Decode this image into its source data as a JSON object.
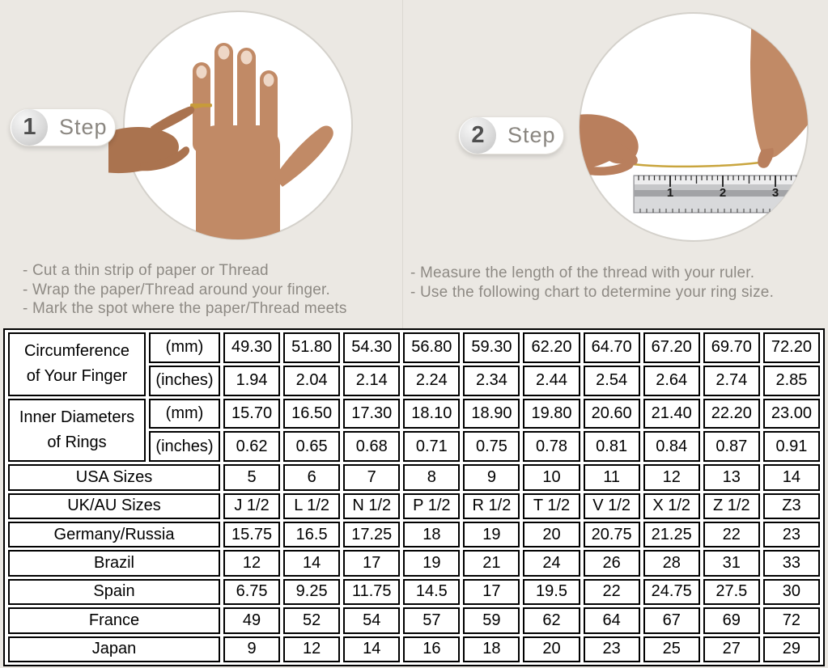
{
  "colors": {
    "page_bg": "#ebe8e3",
    "table_shaded": "#d9d9d9",
    "thread_gold": "#c79b3a",
    "skin_main": "#c18a66",
    "skin_secondary": "#aa734f"
  },
  "steps": [
    {
      "number": "1",
      "label": "Step",
      "photo": "hand-with-thread-wrapped-around-ring-finger",
      "instructions": [
        "-  Cut a thin strip of paper or Thread",
        "-  Wrap the paper/Thread around your finger.",
        "-  Mark the spot where the paper/Thread meets"
      ]
    },
    {
      "number": "2",
      "label": "Step",
      "photo": "hands-measuring-thread-length-with-ruler",
      "ruler_numbers": [
        "1",
        "2",
        "3"
      ],
      "instructions": [
        "-  Measure the length of the thread with your ruler.",
        "-  Use the following chart to determine your ring size."
      ]
    }
  ],
  "table": {
    "row_groups": [
      {
        "label_lines": [
          "Circumference",
          "of Your Finger"
        ],
        "sub_rows": [
          {
            "unit": "(mm)",
            "shaded": true,
            "values": [
              "49.30",
              "51.80",
              "54.30",
              "56.80",
              "59.30",
              "62.20",
              "64.70",
              "67.20",
              "69.70",
              "72.20"
            ]
          },
          {
            "unit": "(inches)",
            "shaded": false,
            "values": [
              "1.94",
              "2.04",
              "2.14",
              "2.24",
              "2.34",
              "2.44",
              "2.54",
              "2.64",
              "2.74",
              "2.85"
            ]
          }
        ]
      },
      {
        "label_lines": [
          "Inner Diameters",
          "of Rings"
        ],
        "sub_rows": [
          {
            "unit": "(mm)",
            "shaded": false,
            "values": [
              "15.70",
              "16.50",
              "17.30",
              "18.10",
              "18.90",
              "19.80",
              "20.60",
              "21.40",
              "22.20",
              "23.00"
            ]
          },
          {
            "unit": "(inches)",
            "shaded": false,
            "values": [
              "0.62",
              "0.65",
              "0.68",
              "0.71",
              "0.75",
              "0.78",
              "0.81",
              "0.84",
              "0.87",
              "0.91"
            ]
          }
        ]
      }
    ],
    "simple_rows": [
      {
        "label": "USA Sizes",
        "shaded": true,
        "values": [
          "5",
          "6",
          "7",
          "8",
          "9",
          "10",
          "11",
          "12",
          "13",
          "14"
        ]
      },
      {
        "label": "UK/AU Sizes",
        "shaded": false,
        "values": [
          "J 1/2",
          "L 1/2",
          "N 1/2",
          "P 1/2",
          "R 1/2",
          "T 1/2",
          "V 1/2",
          "X 1/2",
          "Z 1/2",
          "Z3"
        ]
      },
      {
        "label": "Germany/Russia",
        "shaded": false,
        "values": [
          "15.75",
          "16.5",
          "17.25",
          "18",
          "19",
          "20",
          "20.75",
          "21.25",
          "22",
          "23"
        ]
      },
      {
        "label": "Brazil",
        "shaded": false,
        "values": [
          "12",
          "14",
          "17",
          "19",
          "21",
          "24",
          "26",
          "28",
          "31",
          "33"
        ]
      },
      {
        "label": "Spain",
        "shaded": false,
        "values": [
          "6.75",
          "9.25",
          "11.75",
          "14.5",
          "17",
          "19.5",
          "22",
          "24.75",
          "27.5",
          "30"
        ]
      },
      {
        "label": "France",
        "shaded": false,
        "values": [
          "49",
          "52",
          "54",
          "57",
          "59",
          "62",
          "64",
          "67",
          "69",
          "72"
        ]
      },
      {
        "label": "Japan",
        "shaded": false,
        "values": [
          "9",
          "12",
          "14",
          "16",
          "18",
          "20",
          "23",
          "25",
          "27",
          "29"
        ]
      }
    ]
  },
  "chart_data": {
    "type": "table",
    "title": "Ring size conversion chart",
    "rows": [
      {
        "label": "Circumference of Your Finger (mm)",
        "values": [
          49.3,
          51.8,
          54.3,
          56.8,
          59.3,
          62.2,
          64.7,
          67.2,
          69.7,
          72.2
        ]
      },
      {
        "label": "Circumference of Your Finger (inches)",
        "values": [
          1.94,
          2.04,
          2.14,
          2.24,
          2.34,
          2.44,
          2.54,
          2.64,
          2.74,
          2.85
        ]
      },
      {
        "label": "Inner Diameters of Rings (mm)",
        "values": [
          15.7,
          16.5,
          17.3,
          18.1,
          18.9,
          19.8,
          20.6,
          21.4,
          22.2,
          23.0
        ]
      },
      {
        "label": "Inner Diameters of Rings (inches)",
        "values": [
          0.62,
          0.65,
          0.68,
          0.71,
          0.75,
          0.78,
          0.81,
          0.84,
          0.87,
          0.91
        ]
      },
      {
        "label": "USA Sizes",
        "values": [
          5,
          6,
          7,
          8,
          9,
          10,
          11,
          12,
          13,
          14
        ]
      },
      {
        "label": "UK/AU Sizes",
        "values": [
          "J 1/2",
          "L 1/2",
          "N 1/2",
          "P 1/2",
          "R 1/2",
          "T 1/2",
          "V 1/2",
          "X 1/2",
          "Z 1/2",
          "Z3"
        ]
      },
      {
        "label": "Germany/Russia",
        "values": [
          15.75,
          16.5,
          17.25,
          18,
          19,
          20,
          20.75,
          21.25,
          22,
          23
        ]
      },
      {
        "label": "Brazil",
        "values": [
          12,
          14,
          17,
          19,
          21,
          24,
          26,
          28,
          31,
          33
        ]
      },
      {
        "label": "Spain",
        "values": [
          6.75,
          9.25,
          11.75,
          14.5,
          17,
          19.5,
          22,
          24.75,
          27.5,
          30
        ]
      },
      {
        "label": "France",
        "values": [
          49,
          52,
          54,
          57,
          59,
          62,
          64,
          67,
          69,
          72
        ]
      },
      {
        "label": "Japan",
        "values": [
          9,
          12,
          14,
          16,
          18,
          20,
          23,
          25,
          27,
          29
        ]
      }
    ]
  }
}
